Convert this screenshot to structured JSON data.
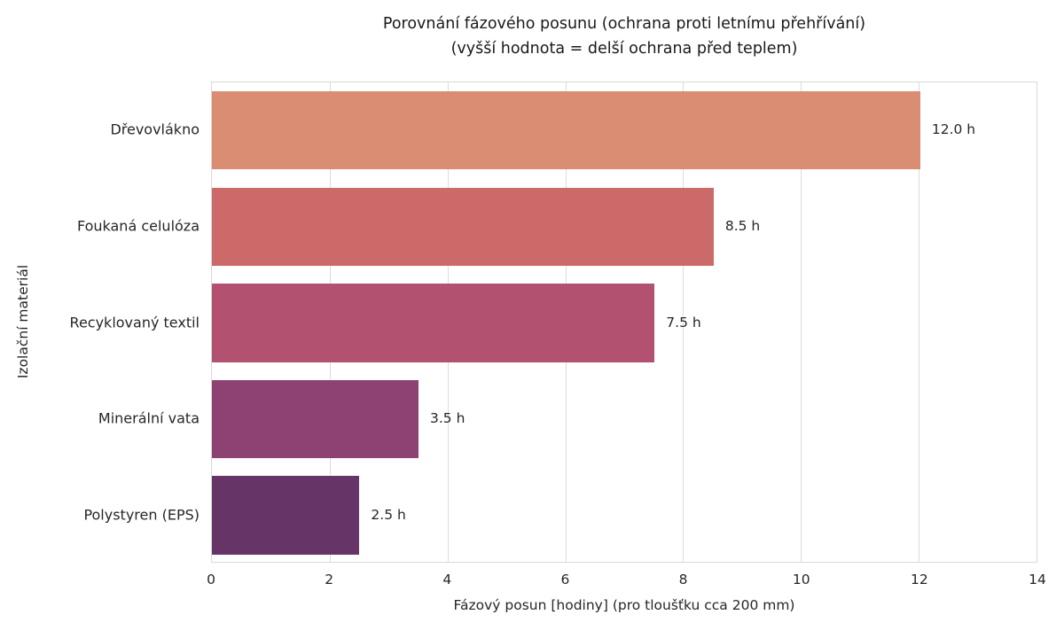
{
  "title": {
    "line1": "Porovnání fázového posunu (ochrana proti letnímu přehřívání)",
    "line2": "(vyšší hodnota = delší ochrana před teplem)"
  },
  "chart_data": {
    "type": "bar",
    "orientation": "horizontal",
    "title": "Porovnání fázového posunu (ochrana proti letnímu přehřívání)",
    "subtitle": "(vyšší hodnota = delší ochrana před teplem)",
    "categories": [
      "Dřevovlákno",
      "Foukaná celulóza",
      "Recyklovaný textil",
      "Minerální vata",
      "Polystyren (EPS)"
    ],
    "values": [
      12.0,
      8.5,
      7.5,
      3.5,
      2.5
    ],
    "value_labels": [
      "12.0 h",
      "8.5 h",
      "7.5 h",
      "3.5 h",
      "2.5 h"
    ],
    "bar_colors": [
      "#d98e74",
      "#cc6a69",
      "#b25170",
      "#8e4273",
      "#673467"
    ],
    "xlabel": "Fázový posun [hodiny] (pro tloušťku cca 200 mm)",
    "ylabel": "Izolační materiál",
    "xlim": [
      0,
      14
    ],
    "xticks": [
      0,
      2,
      4,
      6,
      8,
      10,
      12,
      14
    ],
    "grid": true,
    "grid_color": "#dcdcdc",
    "background": "#ffffff",
    "legend": false
  }
}
